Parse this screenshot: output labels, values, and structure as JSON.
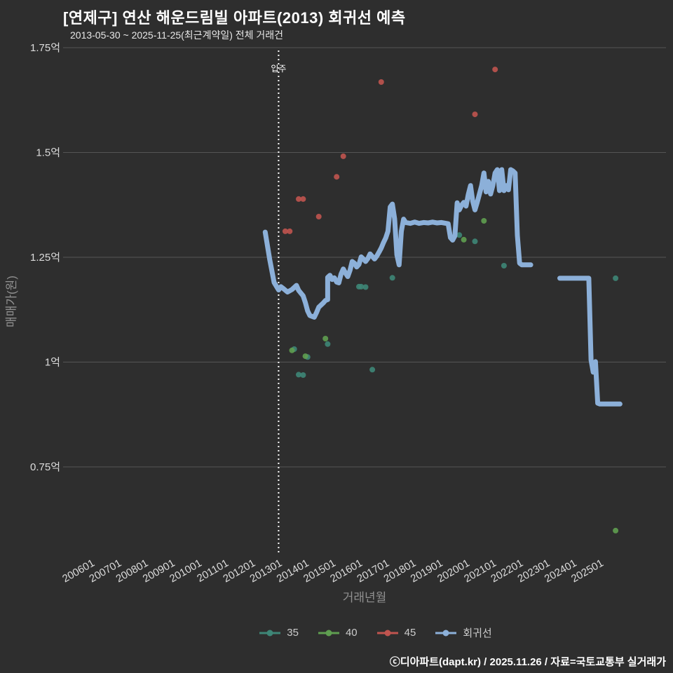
{
  "header": {
    "title": "[연제구] 연산 해운드림빌 아파트(2013) 회귀선 예측",
    "subtitle": "2013-05-30 ~ 2025-11-25(최근계약일) 전체 거래건"
  },
  "footer": {
    "credit": "ⓒ디아파트(dapt.kr) / 2025.11.26 / 자료=국토교통부 실거래가"
  },
  "colors": {
    "background": "#2e2e2e",
    "grid": "#555555",
    "tick_label": "#dcdcdc",
    "axis_title": "#909090",
    "annotation": "#ffffff",
    "series_35": "#3e8677",
    "series_40": "#5f9e50",
    "series_45": "#c0544f",
    "regression": "#8cb0d9"
  },
  "chart_data": {
    "type": "scatter",
    "title": "[연제구] 연산 해운드림빌 아파트(2013) 회귀선 예측",
    "subtitle": "2013-05-30 ~ 2025-11-25(최근계약일) 전체 거래건",
    "xlabel": "거래년월",
    "ylabel": "매매가(원)",
    "ylim": [
      0.54,
      1.77
    ],
    "xlim": [
      "200412",
      "202706"
    ],
    "grid": "horizontal-only",
    "legend_position": "bottom-center",
    "y_ticks": [
      {
        "label": "1.75억",
        "value": 1.75
      },
      {
        "label": "1.5억",
        "value": 1.5
      },
      {
        "label": "1.25억",
        "value": 1.25
      },
      {
        "label": "1억",
        "value": 1.0
      },
      {
        "label": "0.75억",
        "value": 0.75
      }
    ],
    "x_ticks": [
      "200601",
      "200701",
      "200801",
      "200901",
      "201001",
      "201101",
      "201201",
      "201301",
      "201401",
      "201501",
      "201601",
      "201701",
      "201801",
      "201901",
      "202001",
      "202101",
      "202201",
      "202301",
      "202401",
      "202501"
    ],
    "annotation": {
      "label": "입주",
      "x": 201301
    },
    "series": [
      {
        "name": "35",
        "type": "scatter",
        "color": "#3e8677",
        "points": [
          [
            201308,
            1.031
          ],
          [
            201310,
            0.97
          ],
          [
            201312,
            0.969
          ],
          [
            201402,
            1.012
          ],
          [
            201411,
            1.043
          ],
          [
            201601,
            1.18
          ],
          [
            201602,
            1.18
          ],
          [
            201604,
            1.179
          ],
          [
            201607,
            0.982
          ],
          [
            201704,
            1.201
          ],
          [
            201707,
            1.249
          ],
          [
            201910,
            1.303
          ],
          [
            202005,
            1.288
          ],
          [
            202106,
            1.23
          ],
          [
            202508,
            1.2
          ]
        ]
      },
      {
        "name": "40",
        "type": "scatter",
        "color": "#5f9e50",
        "points": [
          [
            201307,
            1.028
          ],
          [
            201401,
            1.014
          ],
          [
            201410,
            1.056
          ],
          [
            201912,
            1.292
          ],
          [
            202009,
            1.337
          ],
          [
            202508,
            0.598
          ]
        ]
      },
      {
        "name": "45",
        "type": "scatter",
        "color": "#c0544f",
        "points": [
          [
            201304,
            1.312
          ],
          [
            201306,
            1.312
          ],
          [
            201310,
            1.389
          ],
          [
            201312,
            1.389
          ],
          [
            201407,
            1.347
          ],
          [
            201503,
            1.442
          ],
          [
            201506,
            1.491
          ],
          [
            201611,
            1.668
          ],
          [
            202005,
            1.591
          ],
          [
            202102,
            1.698
          ]
        ]
      },
      {
        "name": "회귀선",
        "type": "line",
        "color": "#8cb0d9",
        "segments": [
          [
            [
              201207,
              1.31
            ],
            [
              201209,
              1.245
            ],
            [
              201211,
              1.19
            ],
            [
              201301,
              1.172
            ],
            [
              201302,
              1.18
            ],
            [
              201303,
              1.176
            ],
            [
              201305,
              1.167
            ],
            [
              201307,
              1.173
            ],
            [
              201309,
              1.183
            ],
            [
              201310,
              1.171
            ],
            [
              201312,
              1.158
            ],
            [
              201401,
              1.142
            ],
            [
              201402,
              1.122
            ],
            [
              201403,
              1.111
            ],
            [
              201405,
              1.107
            ],
            [
              201406,
              1.118
            ],
            [
              201407,
              1.131
            ],
            [
              201409,
              1.141
            ],
            [
              201410,
              1.147
            ],
            [
              201411,
              1.149
            ],
            [
              201411,
              1.202
            ],
            [
              201412,
              1.207
            ],
            [
              201501,
              1.197
            ],
            [
              201502,
              1.201
            ],
            [
              201503,
              1.191
            ],
            [
              201504,
              1.189
            ],
            [
              201505,
              1.21
            ],
            [
              201506,
              1.222
            ],
            [
              201507,
              1.212
            ],
            [
              201508,
              1.204
            ],
            [
              201509,
              1.219
            ],
            [
              201510,
              1.24
            ],
            [
              201511,
              1.236
            ],
            [
              201512,
              1.227
            ],
            [
              201601,
              1.233
            ],
            [
              201602,
              1.251
            ],
            [
              201603,
              1.246
            ],
            [
              201604,
              1.24
            ],
            [
              201605,
              1.247
            ],
            [
              201606,
              1.258
            ],
            [
              201607,
              1.252
            ],
            [
              201608,
              1.246
            ],
            [
              201609,
              1.253
            ],
            [
              201610,
              1.262
            ],
            [
              201611,
              1.272
            ],
            [
              201612,
              1.285
            ],
            [
              201701,
              1.296
            ],
            [
              201702,
              1.312
            ],
            [
              201703,
              1.37
            ],
            [
              201704,
              1.377
            ],
            [
              201705,
              1.342
            ],
            [
              201706,
              1.256
            ],
            [
              201707,
              1.232
            ],
            [
              201708,
              1.312
            ],
            [
              201709,
              1.341
            ],
            [
              201710,
              1.333
            ],
            [
              201712,
              1.331
            ],
            [
              201802,
              1.334
            ],
            [
              201804,
              1.331
            ],
            [
              201806,
              1.333
            ],
            [
              201808,
              1.332
            ],
            [
              201810,
              1.334
            ],
            [
              201812,
              1.332
            ],
            [
              201902,
              1.333
            ],
            [
              201904,
              1.331
            ],
            [
              201905,
              1.33
            ],
            [
              201906,
              1.297
            ],
            [
              201907,
              1.291
            ],
            [
              201908,
              1.301
            ],
            [
              201909,
              1.38
            ],
            [
              201910,
              1.363
            ],
            [
              201911,
              1.374
            ],
            [
              201912,
              1.381
            ],
            [
              202001,
              1.372
            ],
            [
              202002,
              1.4
            ],
            [
              202003,
              1.421
            ],
            [
              202004,
              1.384
            ],
            [
              202005,
              1.363
            ],
            [
              202006,
              1.381
            ],
            [
              202007,
              1.401
            ],
            [
              202008,
              1.421
            ],
            [
              202009,
              1.451
            ],
            [
              202010,
              1.406
            ],
            [
              202011,
              1.431
            ],
            [
              202012,
              1.401
            ],
            [
              202101,
              1.421
            ],
            [
              202102,
              1.451
            ],
            [
              202103,
              1.459
            ],
            [
              202104,
              1.409
            ],
            [
              202105,
              1.459
            ],
            [
              202106,
              1.409
            ],
            [
              202107,
              1.421
            ],
            [
              202108,
              1.411
            ],
            [
              202109,
              1.459
            ],
            [
              202110,
              1.456
            ],
            [
              202111,
              1.451
            ],
            [
              202112,
              1.302
            ],
            [
              202201,
              1.236
            ],
            [
              202202,
              1.232
            ],
            [
              202204,
              1.232
            ],
            [
              202206,
              1.232
            ]
          ],
          [
            [
              202307,
              1.2
            ],
            [
              202401,
              1.2
            ],
            [
              202408,
              1.2
            ],
            [
              202409,
              1.005
            ],
            [
              202410,
              0.976
            ],
            [
              202411,
              1.001
            ],
            [
              202412,
              0.902
            ],
            [
              202501,
              0.9
            ],
            [
              202510,
              0.9
            ]
          ]
        ]
      }
    ]
  }
}
